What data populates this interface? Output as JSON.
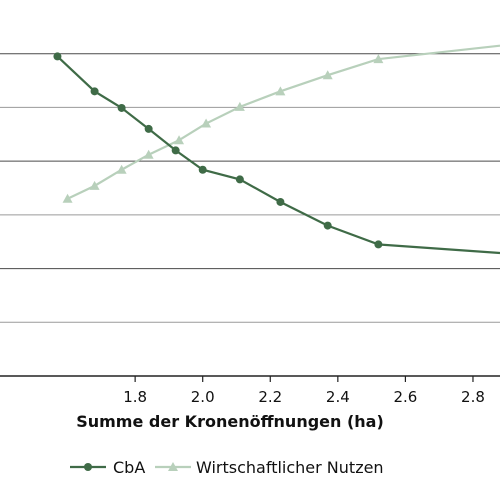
{
  "chart_data": {
    "type": "line",
    "title": "",
    "xlabel": "Summe der Kronenöffnungen (ha)",
    "ylabel": "",
    "xlim": [
      1.4,
      2.88
    ],
    "ylim": [
      0,
      7
    ],
    "x_ticks": [
      "1.8",
      "2.0",
      "2.2",
      "2.4",
      "2.6",
      "2.8"
    ],
    "grid": "horizontal",
    "legend_position": "bottom",
    "series": [
      {
        "name": "CbA",
        "color": "#3f6b47",
        "marker": "circle",
        "x": [
          1.57,
          1.68,
          1.76,
          1.84,
          1.92,
          2.0,
          2.11,
          2.23,
          2.37,
          2.52,
          2.88
        ],
        "y": [
          5.95,
          5.3,
          4.99,
          4.6,
          4.2,
          3.84,
          3.66,
          3.24,
          2.8,
          2.45,
          2.29
        ]
      },
      {
        "name": "Wirtschaftlicher Nutzen",
        "color": "#b8d0bb",
        "marker": "triangle",
        "x": [
          1.6,
          1.68,
          1.76,
          1.84,
          1.93,
          2.01,
          2.11,
          2.23,
          2.37,
          2.52,
          2.88
        ],
        "y": [
          3.3,
          3.54,
          3.84,
          4.12,
          4.39,
          4.7,
          5.01,
          5.3,
          5.6,
          5.9,
          6.15
        ]
      }
    ]
  }
}
